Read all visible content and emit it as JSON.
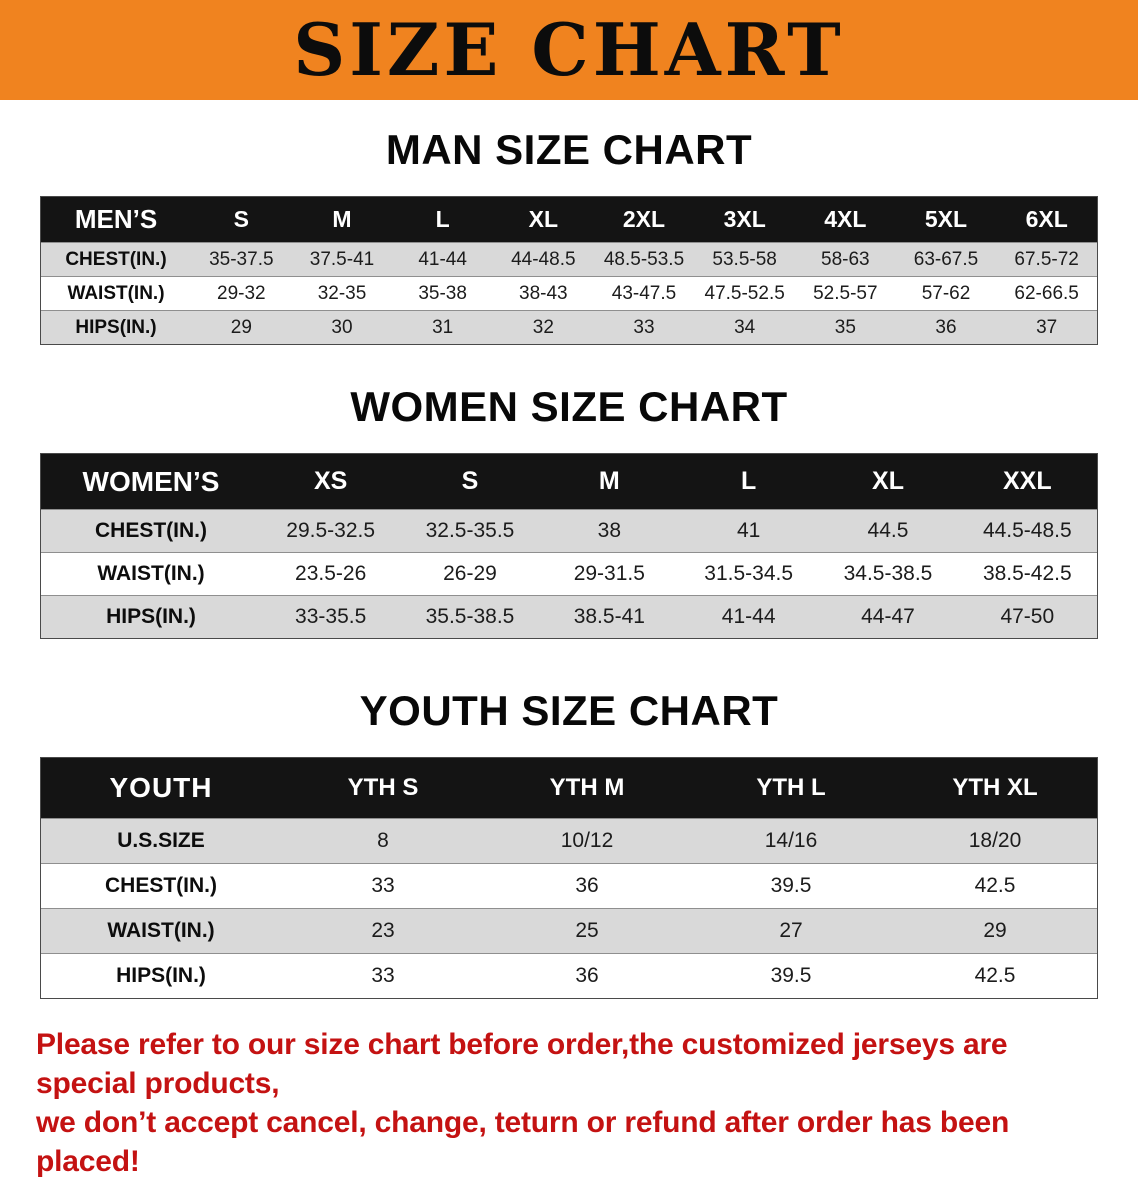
{
  "banner": {
    "title": "SIZE CHART"
  },
  "colors": {
    "banner_bg": "#f0831f",
    "header_bg": "#141414",
    "row_gray": "#d9d9d9",
    "note_red": "#c41212"
  },
  "sections": [
    {
      "heading": "MAN SIZE CHART",
      "table": {
        "header_label": "MEN’S",
        "columns": [
          "S",
          "M",
          "L",
          "XL",
          "2XL",
          "3XL",
          "4XL",
          "5XL",
          "6XL"
        ],
        "rows": [
          {
            "label": "CHEST(IN.)",
            "values": [
              "35-37.5",
              "37.5-41",
              "41-44",
              "44-48.5",
              "48.5-53.5",
              "53.5-58",
              "58-63",
              "63-67.5",
              "67.5-72"
            ]
          },
          {
            "label": "WAIST(IN.)",
            "values": [
              "29-32",
              "32-35",
              "35-38",
              "38-43",
              "43-47.5",
              "47.5-52.5",
              "52.5-57",
              "57-62",
              "62-66.5"
            ]
          },
          {
            "label": "HIPS(IN.)",
            "values": [
              "29",
              "30",
              "31",
              "32",
              "33",
              "34",
              "35",
              "36",
              "37"
            ]
          }
        ]
      }
    },
    {
      "heading": "WOMEN SIZE CHART",
      "table": {
        "header_label": "WOMEN’S",
        "columns": [
          "XS",
          "S",
          "M",
          "L",
          "XL",
          "XXL"
        ],
        "rows": [
          {
            "label": "CHEST(IN.)",
            "values": [
              "29.5-32.5",
              "32.5-35.5",
              "38",
              "41",
              "44.5",
              "44.5-48.5"
            ]
          },
          {
            "label": "WAIST(IN.)",
            "values": [
              "23.5-26",
              "26-29",
              "29-31.5",
              "31.5-34.5",
              "34.5-38.5",
              "38.5-42.5"
            ]
          },
          {
            "label": "HIPS(IN.)",
            "values": [
              "33-35.5",
              "35.5-38.5",
              "38.5-41",
              "41-44",
              "44-47",
              "47-50"
            ]
          }
        ]
      }
    },
    {
      "heading": "YOUTH SIZE CHART",
      "table": {
        "header_label": "YOUTH",
        "columns": [
          "YTH S",
          "YTH M",
          "YTH L",
          "YTH XL"
        ],
        "rows": [
          {
            "label": "U.S.SIZE",
            "values": [
              "8",
              "10/12",
              "14/16",
              "18/20"
            ]
          },
          {
            "label": "CHEST(IN.)",
            "values": [
              "33",
              "36",
              "39.5",
              "42.5"
            ]
          },
          {
            "label": "WAIST(IN.)",
            "values": [
              "23",
              "25",
              "27",
              "29"
            ]
          },
          {
            "label": "HIPS(IN.)",
            "values": [
              "33",
              "36",
              "39.5",
              "42.5"
            ]
          }
        ]
      }
    }
  ],
  "note": {
    "line1": "Please refer to our size chart before order,the customized jerseys are special products,",
    "line2": "we don’t accept cancel, change, teturn or refund after order has been placed!"
  }
}
